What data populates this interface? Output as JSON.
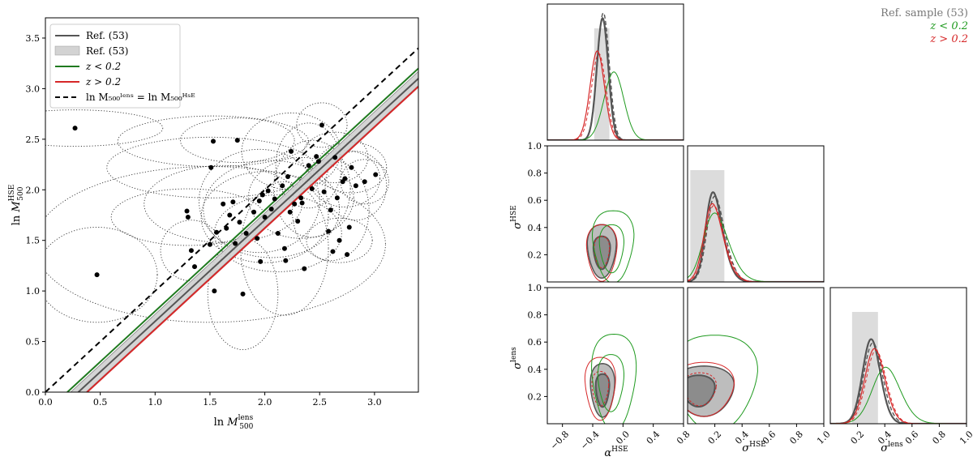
{
  "chart_data": [
    {
      "type": "scatter",
      "xlim": [
        0.0,
        3.4
      ],
      "ylim": [
        0.0,
        3.7
      ],
      "xticks": [
        "0.0",
        "0.5",
        "1.0",
        "1.5",
        "2.0",
        "2.5",
        "3.0"
      ],
      "yticks": [
        "0.0",
        "0.5",
        "1.0",
        "1.5",
        "2.0",
        "2.5",
        "3.0",
        "3.5"
      ],
      "xlabel": "ln M₅₀₀ˡᵉⁿˢ",
      "ylabel": "ln M₅₀₀ᴴˢᴱ",
      "grid": false,
      "legend": {
        "placement": "upper-left",
        "entries": [
          {
            "label": "Ref. (53)",
            "style": "line",
            "color": "#555555"
          },
          {
            "label": "Ref. (53)",
            "style": "band",
            "color": "#cccccc"
          },
          {
            "label": "z < 0.2",
            "style": "line",
            "color": "#1f7a1f"
          },
          {
            "label": "z > 0.2",
            "style": "line",
            "color": "#d62728"
          },
          {
            "label": "ln M₅₀₀ˡᵉⁿˢ = ln M₅₀₀ᴴˢᴱ",
            "style": "dashed",
            "color": "#000000"
          }
        ]
      },
      "lines": [
        {
          "name": "one-to-one",
          "intercept": 0.0,
          "slope": 1.0,
          "style": "dashed",
          "color": "#000000"
        },
        {
          "name": "Ref. (53)",
          "intercept": -0.3,
          "slope": 1.0,
          "band": 0.07,
          "color": "#555555"
        },
        {
          "name": "z < 0.2",
          "intercept": -0.2,
          "slope": 1.0,
          "color": "#1f7a1f"
        },
        {
          "name": "z > 0.2",
          "intercept": -0.38,
          "slope": 1.0,
          "color": "#d62728"
        }
      ],
      "points": [
        {
          "x": 0.27,
          "y": 2.61
        },
        {
          "x": 0.47,
          "y": 1.16
        },
        {
          "x": 1.29,
          "y": 1.79
        },
        {
          "x": 1.3,
          "y": 1.73
        },
        {
          "x": 1.33,
          "y": 1.4
        },
        {
          "x": 1.36,
          "y": 1.24
        },
        {
          "x": 1.5,
          "y": 1.46
        },
        {
          "x": 1.51,
          "y": 2.22
        },
        {
          "x": 1.53,
          "y": 2.48
        },
        {
          "x": 1.54,
          "y": 1.0
        },
        {
          "x": 1.56,
          "y": 1.58
        },
        {
          "x": 1.62,
          "y": 1.86
        },
        {
          "x": 1.65,
          "y": 1.62
        },
        {
          "x": 1.68,
          "y": 1.75
        },
        {
          "x": 1.71,
          "y": 1.88
        },
        {
          "x": 1.73,
          "y": 1.47
        },
        {
          "x": 1.75,
          "y": 2.49
        },
        {
          "x": 1.77,
          "y": 1.68
        },
        {
          "x": 1.8,
          "y": 0.97
        },
        {
          "x": 1.83,
          "y": 1.57
        },
        {
          "x": 1.9,
          "y": 1.78
        },
        {
          "x": 1.93,
          "y": 1.52
        },
        {
          "x": 1.95,
          "y": 1.89
        },
        {
          "x": 1.96,
          "y": 1.29
        },
        {
          "x": 1.98,
          "y": 1.95
        },
        {
          "x": 2.0,
          "y": 1.73
        },
        {
          "x": 2.03,
          "y": 1.99
        },
        {
          "x": 2.06,
          "y": 1.81
        },
        {
          "x": 2.09,
          "y": 1.91
        },
        {
          "x": 2.12,
          "y": 1.57
        },
        {
          "x": 2.16,
          "y": 2.04
        },
        {
          "x": 2.18,
          "y": 1.42
        },
        {
          "x": 2.19,
          "y": 1.3
        },
        {
          "x": 2.21,
          "y": 2.13
        },
        {
          "x": 2.23,
          "y": 1.78
        },
        {
          "x": 2.24,
          "y": 2.38
        },
        {
          "x": 2.27,
          "y": 1.86
        },
        {
          "x": 2.3,
          "y": 1.69
        },
        {
          "x": 2.33,
          "y": 1.92
        },
        {
          "x": 2.34,
          "y": 1.87
        },
        {
          "x": 2.36,
          "y": 1.22
        },
        {
          "x": 2.4,
          "y": 2.24
        },
        {
          "x": 2.43,
          "y": 2.01
        },
        {
          "x": 2.47,
          "y": 2.33
        },
        {
          "x": 2.49,
          "y": 2.28
        },
        {
          "x": 2.52,
          "y": 2.64
        },
        {
          "x": 2.54,
          "y": 1.98
        },
        {
          "x": 2.58,
          "y": 1.59
        },
        {
          "x": 2.6,
          "y": 1.8
        },
        {
          "x": 2.62,
          "y": 1.39
        },
        {
          "x": 2.64,
          "y": 2.32
        },
        {
          "x": 2.66,
          "y": 1.92
        },
        {
          "x": 2.68,
          "y": 1.5
        },
        {
          "x": 2.71,
          "y": 2.08
        },
        {
          "x": 2.73,
          "y": 2.11
        },
        {
          "x": 2.75,
          "y": 1.36
        },
        {
          "x": 2.77,
          "y": 1.63
        },
        {
          "x": 2.79,
          "y": 2.22
        },
        {
          "x": 2.83,
          "y": 2.04
        },
        {
          "x": 2.91,
          "y": 2.08
        },
        {
          "x": 3.01,
          "y": 2.15
        }
      ],
      "error_ellipses": [
        {
          "x": 0.27,
          "y": 2.61,
          "rx": 0.8,
          "ry": 0.18
        },
        {
          "x": 0.47,
          "y": 1.16,
          "rx": 0.55,
          "ry": 0.47
        },
        {
          "x": 1.3,
          "y": 1.73,
          "rx": 0.7,
          "ry": 0.28
        },
        {
          "x": 1.5,
          "y": 1.46,
          "rx": 1.6,
          "ry": 0.77
        },
        {
          "x": 1.53,
          "y": 2.48,
          "rx": 0.87,
          "ry": 0.25
        },
        {
          "x": 1.51,
          "y": 2.22,
          "rx": 0.95,
          "ry": 0.3
        },
        {
          "x": 1.62,
          "y": 1.86,
          "rx": 0.72,
          "ry": 0.38
        },
        {
          "x": 1.75,
          "y": 2.49,
          "rx": 0.52,
          "ry": 0.22
        },
        {
          "x": 1.8,
          "y": 0.97,
          "rx": 0.32,
          "ry": 0.55
        },
        {
          "x": 1.95,
          "y": 1.89,
          "rx": 0.55,
          "ry": 0.51
        },
        {
          "x": 2.0,
          "y": 1.73,
          "rx": 0.58,
          "ry": 0.45
        },
        {
          "x": 2.06,
          "y": 1.81,
          "rx": 0.62,
          "ry": 0.48
        },
        {
          "x": 2.12,
          "y": 1.57,
          "rx": 0.58,
          "ry": 0.38
        },
        {
          "x": 2.18,
          "y": 1.42,
          "rx": 0.4,
          "ry": 0.66
        },
        {
          "x": 2.24,
          "y": 2.38,
          "rx": 0.45,
          "ry": 0.38
        },
        {
          "x": 2.33,
          "y": 1.92,
          "rx": 0.48,
          "ry": 0.4
        },
        {
          "x": 2.4,
          "y": 2.24,
          "rx": 0.3,
          "ry": 0.42
        },
        {
          "x": 2.43,
          "y": 2.01,
          "rx": 0.35,
          "ry": 0.48
        },
        {
          "x": 2.52,
          "y": 2.64,
          "rx": 0.23,
          "ry": 0.22
        },
        {
          "x": 2.6,
          "y": 1.8,
          "rx": 0.35,
          "ry": 0.5
        },
        {
          "x": 2.64,
          "y": 2.32,
          "rx": 0.3,
          "ry": 0.25
        },
        {
          "x": 2.73,
          "y": 2.11,
          "rx": 0.32,
          "ry": 0.28
        },
        {
          "x": 2.79,
          "y": 2.22,
          "rx": 0.32,
          "ry": 0.25
        },
        {
          "x": 2.83,
          "y": 2.04,
          "rx": 0.28,
          "ry": 0.34
        },
        {
          "x": 2.91,
          "y": 2.08,
          "rx": 0.22,
          "ry": 0.22
        },
        {
          "x": 2.68,
          "y": 1.5,
          "rx": 0.3,
          "ry": 0.22
        },
        {
          "x": 1.33,
          "y": 1.4,
          "rx": 0.28,
          "ry": 0.3
        }
      ]
    },
    {
      "type": "corner",
      "params": [
        "αᴴˢᴱ",
        "σᴴˢᴱ",
        "σˡᵉⁿˢ"
      ],
      "legend": {
        "placement": "top-right",
        "entries": [
          {
            "label": "Ref. sample (53)",
            "color": "#777777"
          },
          {
            "label": "z < 0.2",
            "color": "#1f9a1f"
          },
          {
            "label": "z > 0.2",
            "color": "#d62728"
          }
        ]
      },
      "ranges": {
        "alpha": [
          -1.0,
          0.8
        ],
        "sigma_hse": [
          0.0,
          1.0
        ],
        "sigma_lens": [
          0.0,
          1.0
        ]
      },
      "ticks": {
        "alpha": [
          "−0.8",
          "−0.4",
          "0.0",
          "0.4",
          "0.8"
        ],
        "sigma_x": [
          "0.2",
          "0.4",
          "0.6",
          "0.8",
          "1.0"
        ],
        "sigma_y": [
          "0.2",
          "0.4",
          "0.6",
          "0.8",
          "1.0"
        ]
      },
      "marginals": {
        "alpha": {
          "ref_peak": -0.27,
          "ref_width": 0.075,
          "low_z_peak": -0.12,
          "low_z_width": 0.13,
          "high_z_peak": -0.34,
          "high_z_width": 0.095,
          "ref_interval": [
            -0.38,
            -0.18
          ]
        },
        "sigma_hse": {
          "ref_peak": 0.14,
          "low_z_peak": 0.13,
          "high_z_peak": 0.13,
          "ref_interval": [
            0.02,
            0.27
          ]
        },
        "sigma_lens": {
          "ref_peak": 0.26,
          "low_z_peak": 0.34,
          "high_z_peak": 0.28,
          "ref_interval": [
            0.16,
            0.35
          ]
        }
      }
    }
  ]
}
